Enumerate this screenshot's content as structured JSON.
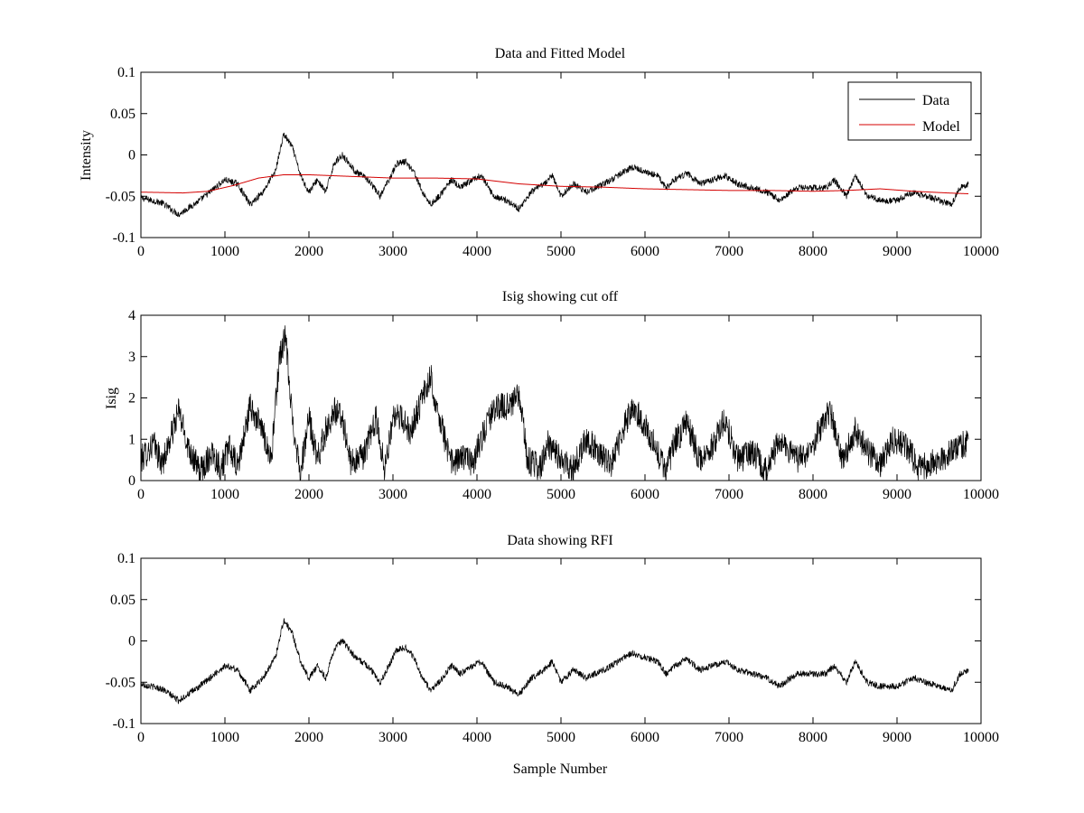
{
  "figure": {
    "background": "#ffffff"
  },
  "chart_data": [
    {
      "type": "line",
      "title": "Data and Fitted Model",
      "xlabel": "",
      "ylabel": "Intensity",
      "xlim": [
        0,
        10000
      ],
      "ylim": [
        -0.1,
        0.1
      ],
      "xticks": [
        0,
        1000,
        2000,
        3000,
        4000,
        5000,
        6000,
        7000,
        8000,
        9000,
        10000
      ],
      "yticks": [
        -0.1,
        -0.05,
        0,
        0.05,
        0.1
      ],
      "xtick_labels": [
        "0",
        "1000",
        "2000",
        "3000",
        "4000",
        "5000",
        "6000",
        "7000",
        "8000",
        "9000",
        "10000"
      ],
      "ytick_labels": [
        "-0.1",
        "-0.05",
        "0",
        "0.05",
        "0.1"
      ],
      "legend": {
        "position": "top-right",
        "entries": [
          "Data",
          "Model"
        ]
      },
      "series": [
        {
          "name": "Data",
          "color": "#000000",
          "noise": 0.004,
          "x": [
            0,
            250,
            450,
            700,
            1000,
            1150,
            1300,
            1450,
            1600,
            1700,
            1800,
            1900,
            2000,
            2100,
            2200,
            2300,
            2400,
            2550,
            2700,
            2850,
            2950,
            3050,
            3150,
            3250,
            3350,
            3450,
            3550,
            3700,
            3800,
            3950,
            4050,
            4200,
            4350,
            4500,
            4650,
            4800,
            4900,
            5000,
            5150,
            5300,
            5450,
            5600,
            5750,
            5850,
            6000,
            6150,
            6250,
            6350,
            6500,
            6650,
            6800,
            6950,
            7100,
            7300,
            7450,
            7600,
            7800,
            8000,
            8150,
            8250,
            8400,
            8500,
            8650,
            8800,
            9000,
            9200,
            9350,
            9500,
            9650,
            9750,
            9850
          ],
          "values": [
            -0.052,
            -0.058,
            -0.072,
            -0.055,
            -0.03,
            -0.035,
            -0.06,
            -0.045,
            -0.02,
            0.025,
            0.01,
            -0.025,
            -0.045,
            -0.03,
            -0.045,
            -0.01,
            0.0,
            -0.02,
            -0.03,
            -0.05,
            -0.03,
            -0.01,
            -0.008,
            -0.02,
            -0.045,
            -0.06,
            -0.05,
            -0.03,
            -0.04,
            -0.03,
            -0.025,
            -0.05,
            -0.055,
            -0.065,
            -0.045,
            -0.035,
            -0.025,
            -0.05,
            -0.035,
            -0.045,
            -0.038,
            -0.03,
            -0.02,
            -0.015,
            -0.02,
            -0.025,
            -0.04,
            -0.03,
            -0.022,
            -0.035,
            -0.03,
            -0.025,
            -0.035,
            -0.04,
            -0.045,
            -0.055,
            -0.04,
            -0.04,
            -0.04,
            -0.03,
            -0.05,
            -0.025,
            -0.05,
            -0.055,
            -0.055,
            -0.045,
            -0.05,
            -0.055,
            -0.06,
            -0.04,
            -0.035
          ]
        },
        {
          "name": "Model",
          "color": "#d40000",
          "noise": 0,
          "x": [
            0,
            500,
            800,
            1100,
            1400,
            1700,
            2000,
            2500,
            3000,
            3500,
            4000,
            4500,
            5000,
            5500,
            6000,
            6500,
            7000,
            7500,
            8000,
            8400,
            8800,
            9200,
            9600,
            9850
          ],
          "values": [
            -0.045,
            -0.046,
            -0.044,
            -0.037,
            -0.028,
            -0.024,
            -0.024,
            -0.026,
            -0.028,
            -0.028,
            -0.029,
            -0.035,
            -0.038,
            -0.039,
            -0.041,
            -0.042,
            -0.043,
            -0.043,
            -0.044,
            -0.043,
            -0.041,
            -0.044,
            -0.046,
            -0.047
          ]
        }
      ]
    },
    {
      "type": "line",
      "title": "Isig showing cut off",
      "xlabel": "",
      "ylabel": "Isig",
      "xlim": [
        0,
        10000
      ],
      "ylim": [
        0,
        4
      ],
      "xticks": [
        0,
        1000,
        2000,
        3000,
        4000,
        5000,
        6000,
        7000,
        8000,
        9000,
        10000
      ],
      "yticks": [
        0,
        1,
        2,
        3,
        4
      ],
      "xtick_labels": [
        "0",
        "1000",
        "2000",
        "3000",
        "4000",
        "5000",
        "6000",
        "7000",
        "8000",
        "9000",
        "10000"
      ],
      "ytick_labels": [
        "0",
        "1",
        "2",
        "3",
        "4"
      ],
      "series": [
        {
          "name": "Isig",
          "color": "#000000",
          "noise": 0.35,
          "clip_min": 0,
          "x": [
            0,
            150,
            250,
            350,
            450,
            550,
            700,
            850,
            950,
            1050,
            1150,
            1300,
            1450,
            1550,
            1650,
            1720,
            1800,
            1900,
            2000,
            2100,
            2200,
            2300,
            2400,
            2500,
            2650,
            2800,
            2900,
            3000,
            3100,
            3200,
            3300,
            3450,
            3550,
            3700,
            3850,
            3950,
            4050,
            4150,
            4250,
            4400,
            4500,
            4600,
            4750,
            4850,
            5000,
            5150,
            5300,
            5450,
            5600,
            5750,
            5850,
            5950,
            6100,
            6250,
            6350,
            6500,
            6650,
            6800,
            6950,
            7100,
            7300,
            7450,
            7600,
            7800,
            7950,
            8100,
            8200,
            8350,
            8500,
            8650,
            8800,
            8950,
            9100,
            9250,
            9400,
            9550,
            9700,
            9850
          ],
          "values": [
            0.5,
            0.9,
            0.4,
            1.0,
            1.7,
            0.9,
            0.2,
            0.7,
            0.3,
            0.8,
            0.3,
            1.8,
            1.2,
            0.5,
            3.0,
            3.5,
            1.5,
            0.2,
            1.5,
            0.5,
            1.2,
            1.7,
            1.5,
            0.4,
            0.6,
            1.5,
            0.3,
            1.5,
            1.5,
            1.2,
            1.7,
            2.5,
            1.5,
            0.4,
            0.6,
            0.4,
            1.0,
            1.5,
            1.8,
            1.8,
            2.1,
            0.5,
            0.3,
            0.9,
            0.5,
            0.3,
            1.0,
            0.7,
            0.4,
            1.3,
            1.8,
            1.5,
            0.9,
            0.2,
            0.9,
            1.4,
            0.5,
            0.8,
            1.5,
            0.5,
            0.7,
            0.2,
            1.0,
            0.5,
            0.6,
            1.3,
            1.7,
            0.5,
            1.2,
            0.7,
            0.4,
            1.0,
            0.9,
            0.3,
            0.4,
            0.5,
            0.8,
            0.9
          ]
        }
      ]
    },
    {
      "type": "line",
      "title": "Data showing RFI",
      "xlabel": "Sample Number",
      "ylabel": "",
      "xlim": [
        0,
        10000
      ],
      "ylim": [
        -0.1,
        0.1
      ],
      "xticks": [
        0,
        1000,
        2000,
        3000,
        4000,
        5000,
        6000,
        7000,
        8000,
        9000,
        10000
      ],
      "yticks": [
        -0.1,
        -0.05,
        0,
        0.05,
        0.1
      ],
      "xtick_labels": [
        "0",
        "1000",
        "2000",
        "3000",
        "4000",
        "5000",
        "6000",
        "7000",
        "8000",
        "9000",
        "10000"
      ],
      "ytick_labels": [
        "-0.1",
        "-0.05",
        "0",
        "0.05",
        "0.1"
      ],
      "series": [
        {
          "name": "Data",
          "color": "#000000",
          "noise": 0.004,
          "x": [
            0,
            250,
            450,
            700,
            1000,
            1150,
            1300,
            1450,
            1600,
            1700,
            1800,
            1900,
            2000,
            2100,
            2200,
            2300,
            2400,
            2550,
            2700,
            2850,
            2950,
            3050,
            3150,
            3250,
            3350,
            3450,
            3550,
            3700,
            3800,
            3950,
            4050,
            4200,
            4350,
            4500,
            4650,
            4800,
            4900,
            5000,
            5150,
            5300,
            5450,
            5600,
            5750,
            5850,
            6000,
            6150,
            6250,
            6350,
            6500,
            6650,
            6800,
            6950,
            7100,
            7300,
            7450,
            7600,
            7800,
            8000,
            8150,
            8250,
            8400,
            8500,
            8650,
            8800,
            9000,
            9200,
            9350,
            9500,
            9650,
            9750,
            9850
          ],
          "values": [
            -0.052,
            -0.058,
            -0.072,
            -0.055,
            -0.03,
            -0.035,
            -0.06,
            -0.045,
            -0.02,
            0.025,
            0.01,
            -0.025,
            -0.045,
            -0.03,
            -0.045,
            -0.01,
            0.0,
            -0.02,
            -0.03,
            -0.05,
            -0.03,
            -0.01,
            -0.008,
            -0.02,
            -0.045,
            -0.06,
            -0.05,
            -0.03,
            -0.04,
            -0.03,
            -0.025,
            -0.05,
            -0.055,
            -0.065,
            -0.045,
            -0.035,
            -0.025,
            -0.05,
            -0.035,
            -0.045,
            -0.038,
            -0.03,
            -0.02,
            -0.015,
            -0.02,
            -0.025,
            -0.04,
            -0.03,
            -0.022,
            -0.035,
            -0.03,
            -0.025,
            -0.035,
            -0.04,
            -0.045,
            -0.055,
            -0.04,
            -0.04,
            -0.04,
            -0.03,
            -0.05,
            -0.025,
            -0.05,
            -0.055,
            -0.055,
            -0.045,
            -0.05,
            -0.055,
            -0.06,
            -0.04,
            -0.035
          ]
        }
      ]
    }
  ]
}
